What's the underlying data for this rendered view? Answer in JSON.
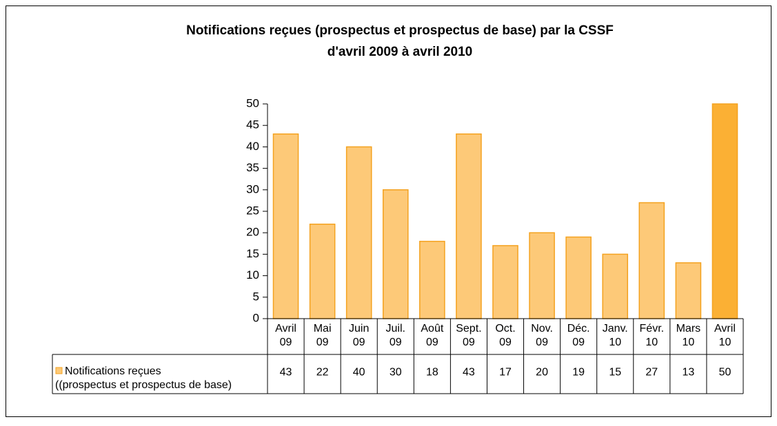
{
  "chart_data": {
    "type": "bar",
    "title": "Notifications reçues (prospectus et prospectus de base) par la CSSF",
    "subtitle": "d'avril 2009 à avril 2010",
    "categories": [
      "Avril 09",
      "Mai 09",
      "Juin 09",
      "Juil. 09",
      "Août 09",
      "Sept. 09",
      "Oct. 09",
      "Nov. 09",
      "Déc. 09",
      "Janv. 10",
      "Févr. 10",
      "Mars 10",
      "Avril 10"
    ],
    "series": [
      {
        "name": "Notifications reçues (prospectus et prospectus de base)",
        "color": "#fdc978",
        "colors": [
          "#fdc978",
          "#fdc978",
          "#fdc978",
          "#fdc978",
          "#fdc978",
          "#fdc978",
          "#fdc978",
          "#fdc978",
          "#fdc978",
          "#fdc978",
          "#fdc978",
          "#fdc978",
          "#fbb034"
        ],
        "values": [
          43,
          22,
          40,
          30,
          18,
          43,
          17,
          20,
          19,
          15,
          27,
          13,
          50
        ]
      }
    ],
    "ylim": [
      0,
      50
    ],
    "yticks": [
      0,
      5,
      10,
      15,
      20,
      25,
      30,
      35,
      40,
      45,
      50
    ],
    "grid": false
  }
}
